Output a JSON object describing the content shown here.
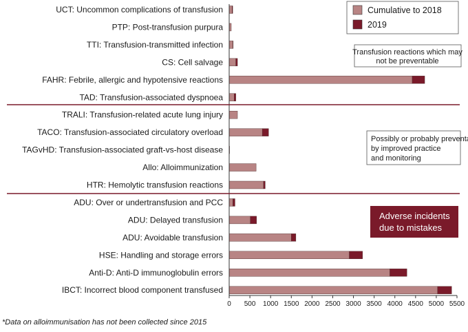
{
  "chart_data": {
    "type": "bar",
    "orientation": "horizontal",
    "stacked": true,
    "categories": [
      "UCT: Uncommon complications of transfusion",
      "PTP: Post-transfusion purpura",
      "TTI: Transfusion-transmitted infection",
      "CS: Cell salvage",
      "FAHR: Febrile, allergic and hypotensive reactions",
      "TAD: Transfusion-associated dyspnoea",
      "TRALI: Transfusion-related acute lung injury",
      "TACO: Transfusion-associated circulatory overload",
      "TAGvHD: Transfusion-associated graft-vs-host disease",
      "Allo: Alloimmunization",
      "HTR: Hemolytic transfusion reactions",
      "ADU: Over or undertransfusion and PCC",
      "ADU: Delayed transfusion",
      "ADU: Avoidable transfusion",
      "HSE: Handling and storage errors",
      "Anti-D: Anti-D immunoglobulin errors",
      "IBCT: Incorrect blood component transfused"
    ],
    "series": [
      {
        "name": "Cumulative to 2018",
        "color": "#b88484",
        "values": [
          70,
          50,
          90,
          160,
          4420,
          120,
          200,
          800,
          10,
          650,
          830,
          90,
          510,
          1500,
          2900,
          3880,
          5030
        ]
      },
      {
        "name": "2019",
        "color": "#7a1a2a",
        "values": [
          15,
          0,
          5,
          40,
          300,
          40,
          0,
          150,
          0,
          0,
          40,
          50,
          150,
          110,
          320,
          410,
          340
        ]
      }
    ],
    "xlim": [
      0,
      5500
    ],
    "xticks": [
      "0",
      "500",
      "1000",
      "1500",
      "2000",
      "2500",
      "3000",
      "3500",
      "4000",
      "4500",
      "5000",
      "5500"
    ],
    "legend_position": "top-right",
    "groups": [
      {
        "label": "Transfusion reactions which may not be preventable"
      },
      {
        "label": "Possibly or probably preventable by improved practice and monitoring"
      },
      {
        "label": "Adverse incidents due to mistakes"
      }
    ],
    "footnote": "*Data on alloimmunisation has not been collected since 2015"
  },
  "colors": {
    "cumulative": "#b88484",
    "year2019": "#7a1a2a",
    "divider": "#7a1a2a",
    "incident_box": "#7a1a2a"
  }
}
